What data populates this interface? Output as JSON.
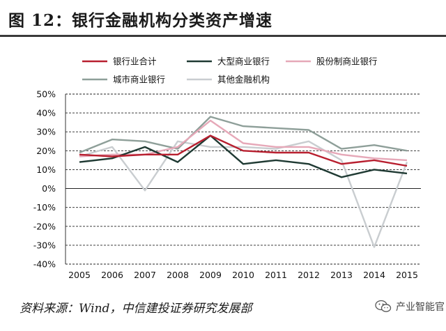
{
  "title": "图 12：银行金融机构分类资产增速",
  "source": "资料来源：Wind，中信建投证券研究发展部",
  "watermark": {
    "text": "产业智能官",
    "icon": "wechat-icon"
  },
  "chart_data": {
    "type": "line",
    "title": "图 12：银行金融机构分类资产增速",
    "xlabel": "",
    "ylabel": "",
    "x": [
      "2005",
      "2006",
      "2007",
      "2008",
      "2009",
      "2010",
      "2011",
      "2012",
      "2013",
      "2014",
      "2015"
    ],
    "ylim": [
      -40,
      50
    ],
    "yticks": [
      -40,
      -30,
      -20,
      -10,
      0,
      10,
      20,
      30,
      40,
      50
    ],
    "ytick_labels": [
      "-40%",
      "-30%",
      "-20%",
      "-10%",
      "0%",
      "10%",
      "20%",
      "30%",
      "40%",
      "50%"
    ],
    "grid": "horizontal dashed",
    "legend_position": "top",
    "series": [
      {
        "name": "银行业合计",
        "color": "#b81f2f",
        "values": [
          18,
          17,
          18,
          18,
          28,
          20,
          19,
          19,
          13,
          15,
          12
        ]
      },
      {
        "name": "大型商业银行",
        "color": "#1f3a33",
        "values": [
          14,
          16,
          22,
          14,
          28,
          13,
          15,
          13,
          6,
          10,
          8
        ]
      },
      {
        "name": "股份制商业银行",
        "color": "#e6a8b8",
        "values": [
          17,
          18,
          18,
          22,
          36,
          24,
          22,
          22,
          18,
          16,
          15
        ]
      },
      {
        "name": "城市商业银行",
        "color": "#8e9f99",
        "values": [
          19,
          26,
          25,
          21,
          38,
          33,
          32,
          31,
          21,
          23,
          20
        ]
      },
      {
        "name": "其他金融机构",
        "color": "#c9cdd0",
        "values": [
          17,
          22,
          -1,
          25,
          22,
          22,
          21,
          25,
          15,
          -31,
          14
        ]
      }
    ]
  }
}
